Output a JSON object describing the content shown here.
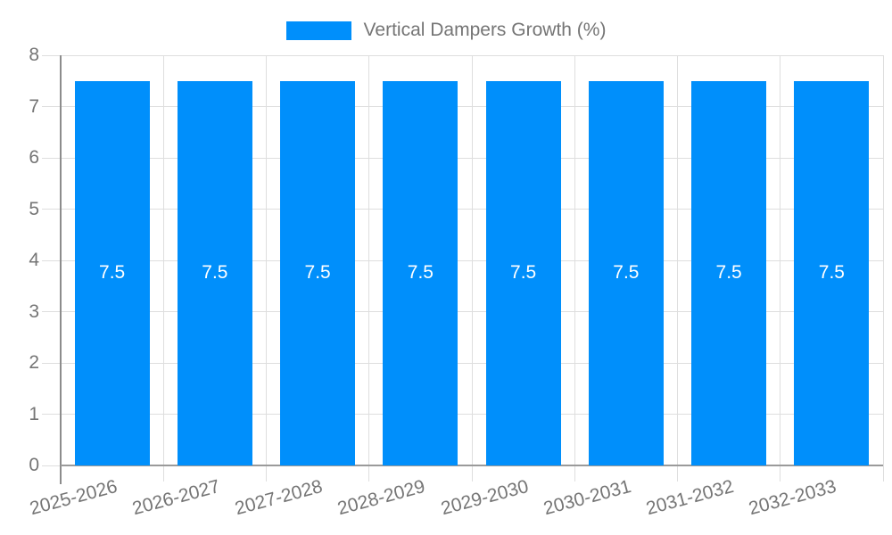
{
  "chart_data": {
    "type": "bar",
    "title": "Vertical Dampers Growth (%)",
    "legend": {
      "label": "Vertical Dampers Growth (%)",
      "position": "top-center"
    },
    "categories": [
      "2025-2026",
      "2026-2027",
      "2027-2028",
      "2028-2029",
      "2029-2030",
      "2030-2031",
      "2031-2032",
      "2032-2033"
    ],
    "values": [
      7.5,
      7.5,
      7.5,
      7.5,
      7.5,
      7.5,
      7.5,
      7.5
    ],
    "bar_labels": [
      "7.5",
      "7.5",
      "7.5",
      "7.5",
      "7.5",
      "7.5",
      "7.5",
      "7.5"
    ],
    "xlabel": "",
    "ylabel": "",
    "ylim": [
      0,
      8
    ],
    "yticks": [
      0,
      1,
      2,
      3,
      4,
      5,
      6,
      7,
      8
    ],
    "grid": true,
    "x_label_rotation_deg": -15,
    "colors": {
      "bar": "#008FFB",
      "axis_text": "#757575",
      "bar_label_text": "#ffffff",
      "gridline": "#dedede",
      "axis_line": "#8c8c8c"
    }
  }
}
